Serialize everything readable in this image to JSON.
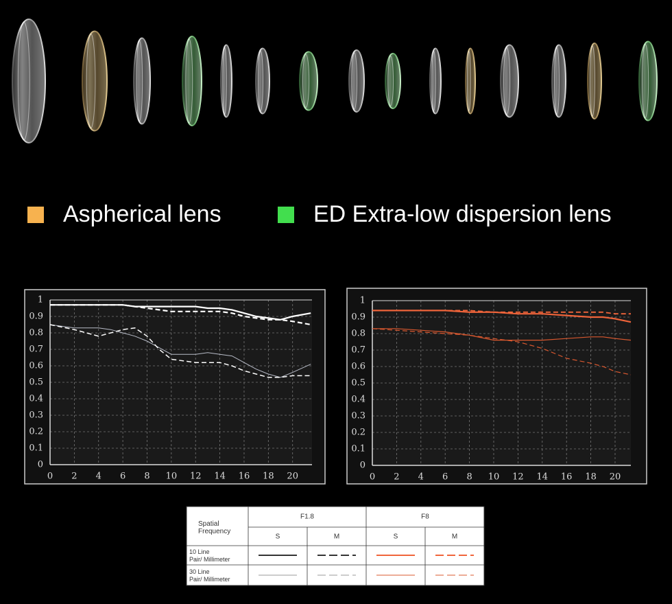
{
  "lens_legend": [
    {
      "label": "Aspherical lens",
      "color": "#f7b24f"
    },
    {
      "label": "ED Extra-low dispersion lens",
      "color": "#42de4e"
    }
  ],
  "chart_data": [
    {
      "type": "line",
      "xlim": [
        0,
        21.6
      ],
      "ylim": [
        0,
        1
      ],
      "xticks": [
        0,
        2,
        4,
        6,
        8,
        10,
        12,
        14,
        16,
        18,
        20
      ],
      "yticks": [
        0,
        0.1,
        0.2,
        0.3,
        0.4,
        0.5,
        0.6,
        0.7,
        0.8,
        0.9,
        1
      ],
      "grid": true,
      "x": [
        0,
        2,
        4,
        5,
        6,
        7,
        8,
        9,
        10,
        12,
        13,
        14,
        15,
        16,
        17,
        18,
        19,
        20,
        21.5
      ],
      "series": [
        {
          "color": "#ffffff",
          "style": "solid",
          "width": 2.2,
          "values": [
            0.97,
            0.97,
            0.97,
            0.97,
            0.97,
            0.96,
            0.96,
            0.96,
            0.96,
            0.96,
            0.95,
            0.95,
            0.94,
            0.92,
            0.9,
            0.89,
            0.88,
            0.9,
            0.92
          ]
        },
        {
          "color": "#ffffff",
          "style": "dashed",
          "width": 2.2,
          "values": [
            0.97,
            0.97,
            0.97,
            0.97,
            0.97,
            0.96,
            0.95,
            0.94,
            0.93,
            0.93,
            0.93,
            0.93,
            0.92,
            0.9,
            0.89,
            0.88,
            0.88,
            0.87,
            0.85
          ]
        },
        {
          "color": "#b8bcc8",
          "style": "solid",
          "width": 1,
          "values": [
            0.85,
            0.83,
            0.83,
            0.82,
            0.8,
            0.78,
            0.75,
            0.71,
            0.67,
            0.67,
            0.68,
            0.67,
            0.66,
            0.62,
            0.58,
            0.55,
            0.53,
            0.56,
            0.61
          ]
        },
        {
          "color": "#ffffff",
          "style": "dashed",
          "width": 1.5,
          "values": [
            0.85,
            0.82,
            0.78,
            0.8,
            0.82,
            0.83,
            0.78,
            0.7,
            0.64,
            0.62,
            0.62,
            0.62,
            0.6,
            0.57,
            0.55,
            0.53,
            0.53,
            0.54,
            0.54
          ]
        }
      ]
    },
    {
      "type": "line",
      "xlim": [
        0,
        21.3
      ],
      "ylim": [
        0,
        1
      ],
      "xticks": [
        0,
        2,
        4,
        6,
        8,
        10,
        12,
        14,
        16,
        18,
        20
      ],
      "yticks": [
        0,
        0.1,
        0.2,
        0.3,
        0.4,
        0.5,
        0.6,
        0.7,
        0.8,
        0.9,
        1
      ],
      "grid": true,
      "x": [
        0,
        2,
        4,
        6,
        8,
        10,
        12,
        14,
        16,
        18,
        19,
        20,
        21.3
      ],
      "series": [
        {
          "color": "#f0643a",
          "style": "solid",
          "width": 2.2,
          "values": [
            0.94,
            0.94,
            0.94,
            0.94,
            0.93,
            0.93,
            0.92,
            0.92,
            0.91,
            0.9,
            0.9,
            0.89,
            0.87
          ]
        },
        {
          "color": "#f0643a",
          "style": "dashed",
          "width": 1.8,
          "values": [
            0.94,
            0.94,
            0.94,
            0.94,
            0.94,
            0.93,
            0.93,
            0.93,
            0.93,
            0.93,
            0.93,
            0.92,
            0.92
          ]
        },
        {
          "color": "#d9582f",
          "style": "solid",
          "width": 1.2,
          "values": [
            0.83,
            0.83,
            0.82,
            0.81,
            0.79,
            0.76,
            0.76,
            0.76,
            0.77,
            0.78,
            0.78,
            0.77,
            0.76
          ]
        },
        {
          "color": "#d9582f",
          "style": "dashed",
          "width": 1.2,
          "values": [
            0.83,
            0.82,
            0.81,
            0.8,
            0.79,
            0.77,
            0.75,
            0.71,
            0.65,
            0.62,
            0.6,
            0.57,
            0.55
          ]
        }
      ]
    }
  ],
  "key_table": {
    "corner": "Spatial Frequency",
    "apertures": [
      "F1.8",
      "F8"
    ],
    "columns": [
      "S",
      "M",
      "S",
      "M"
    ],
    "rows": [
      "10 Line Pair/ Millimeter",
      "30 Line Pair/ Millimeter"
    ]
  }
}
